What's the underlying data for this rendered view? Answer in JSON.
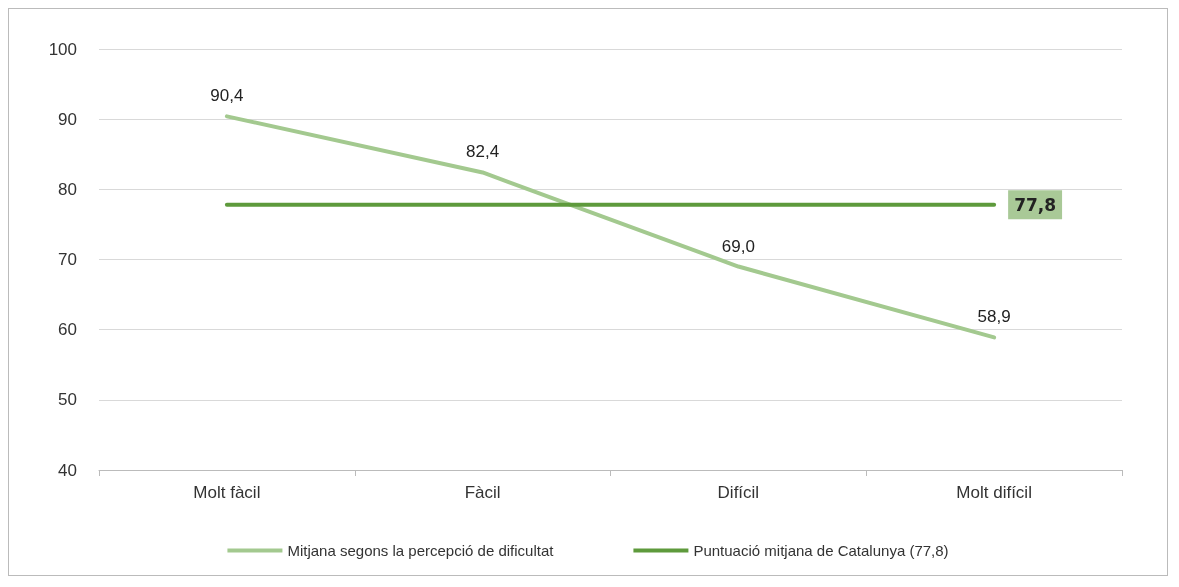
{
  "chart_data": {
    "type": "line",
    "categories": [
      "Molt fàcil",
      "Fàcil",
      "Difícil",
      "Molt difícil"
    ],
    "series": [
      {
        "name": "Mitjana segons la percepció de dificultat",
        "color": "#a3c98f",
        "values": [
          90.4,
          82.4,
          69.0,
          58.9
        ],
        "value_labels": [
          "90,4",
          "82,4",
          "69,0",
          "58,9"
        ]
      },
      {
        "name": "Puntuació mitjana de Catalunya (77,8)",
        "color": "#5e9a3c",
        "values": [
          77.8,
          77.8,
          77.8,
          77.8
        ],
        "value_labels": [
          null,
          null,
          null,
          "77,8"
        ]
      }
    ],
    "ylim": [
      40,
      100
    ],
    "yticks": [
      40,
      50,
      60,
      70,
      80,
      90,
      100
    ],
    "grid": "y",
    "legend": "bottom",
    "marker": "none",
    "line_style": "solid"
  }
}
